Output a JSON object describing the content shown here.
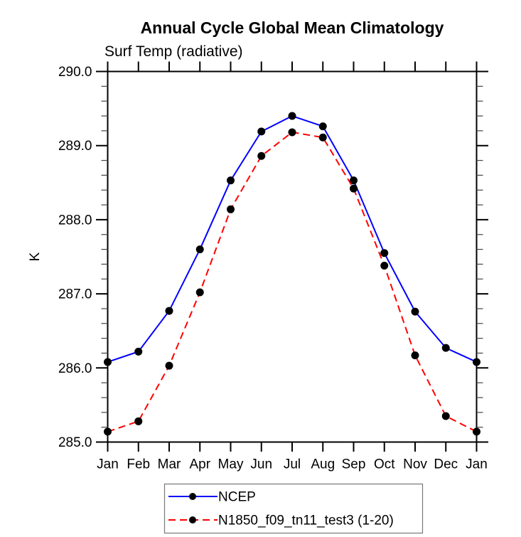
{
  "chart_data": {
    "type": "line",
    "title": "Annual Cycle Global Mean Climatology",
    "subtitle": "Surf Temp (radiative)",
    "ylabel": "K",
    "categories": [
      "Jan",
      "Feb",
      "Mar",
      "Apr",
      "May",
      "Jun",
      "Jul",
      "Aug",
      "Sep",
      "Oct",
      "Nov",
      "Dec",
      "Jan"
    ],
    "series": [
      {
        "name": "NCEP",
        "color": "#0000ff",
        "line_style": "solid",
        "marker": "filled-circle",
        "marker_color": "#000000",
        "values": [
          286.08,
          286.22,
          286.77,
          287.6,
          288.53,
          289.19,
          289.4,
          289.26,
          288.53,
          287.55,
          286.76,
          286.27,
          286.08
        ]
      },
      {
        "name": "N1850_f09_tn11_test3 (1-20)",
        "color": "#ff0000",
        "line_style": "dashed",
        "marker": "filled-circle",
        "marker_color": "#000000",
        "values": [
          285.14,
          285.28,
          286.03,
          287.02,
          288.14,
          288.86,
          289.18,
          289.11,
          288.42,
          287.38,
          286.17,
          285.35,
          285.14
        ]
      }
    ],
    "yaxis": {
      "min": 285.0,
      "max": 290.0,
      "major_step": 1.0,
      "minor_step": 0.2,
      "major_tick_labels": [
        "285.0",
        "286.0",
        "287.0",
        "288.0",
        "289.0",
        "290.0"
      ]
    },
    "xaxis": {
      "ticks_per_category": true,
      "minor_ticks": false
    },
    "grid": false,
    "legend_position": "bottom-center"
  },
  "colors": {
    "background": "#ffffff",
    "axis": "#000000",
    "minor_tick": "#444444",
    "legend_border": "#777777",
    "text": "#000000"
  }
}
